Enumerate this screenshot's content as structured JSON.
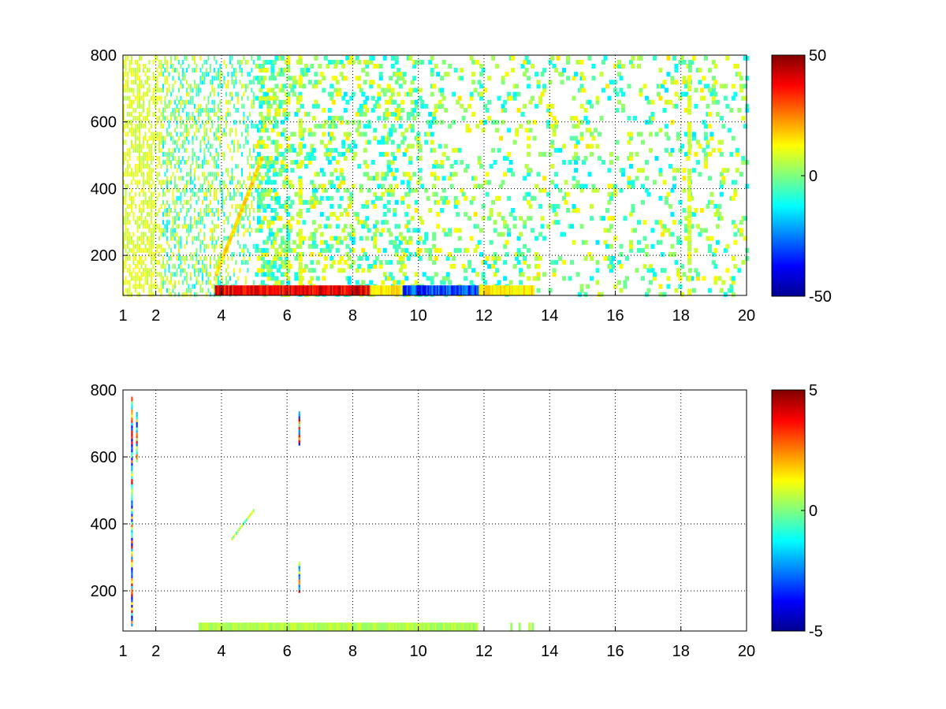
{
  "chart_data": [
    {
      "type": "heatmap",
      "title": "",
      "xlabel": "",
      "ylabel": "",
      "xlim": [
        1,
        20
      ],
      "ylim": [
        80,
        800
      ],
      "xticks": [
        1,
        2,
        4,
        6,
        8,
        10,
        12,
        14,
        16,
        18,
        20
      ],
      "xtick_labels": [
        "1",
        "2",
        "4",
        "6",
        "8",
        "10",
        "12",
        "14",
        "16",
        "18",
        "20"
      ],
      "yticks": [
        200,
        400,
        600,
        800
      ],
      "ytick_labels": [
        "200",
        "400",
        "600",
        "800"
      ],
      "grid": true,
      "colormap": "jet",
      "colorbar": {
        "min": -50,
        "max": 50,
        "ticks": [
          50,
          0,
          -50
        ],
        "tick_labels": [
          "50",
          "0",
          "-50"
        ]
      },
      "features": {
        "low_freq_dense_columns_x": [
          1,
          5
        ],
        "bottom_band": {
          "x_range": [
            3.8,
            13.5
          ],
          "y_range": [
            80,
            110
          ],
          "x_positive_range": [
            3.8,
            8.5
          ],
          "x_negative_range": [
            9.5,
            11.8
          ]
        },
        "diagonal_feature": {
          "x_range": [
            3.8,
            5.2
          ],
          "y_range": [
            150,
            500
          ]
        },
        "strong_columns_x": [
          6.35,
          18.2
        ],
        "sparse_patches_value_range": [
          -15,
          15
        ]
      }
    },
    {
      "type": "heatmap",
      "title": "",
      "xlabel": "",
      "ylabel": "",
      "xlim": [
        1,
        20
      ],
      "ylim": [
        80,
        800
      ],
      "xticks": [
        1,
        2,
        4,
        6,
        8,
        10,
        12,
        14,
        16,
        18,
        20
      ],
      "xtick_labels": [
        "1",
        "2",
        "4",
        "6",
        "8",
        "10",
        "12",
        "14",
        "16",
        "18",
        "20"
      ],
      "yticks": [
        200,
        400,
        600,
        800
      ],
      "ytick_labels": [
        "200",
        "400",
        "600",
        "800"
      ],
      "grid": true,
      "colormap": "jet",
      "colorbar": {
        "min": -5,
        "max": 5,
        "ticks": [
          5,
          0,
          -5
        ],
        "tick_labels": [
          "5",
          "0",
          "-5"
        ]
      },
      "features": {
        "bottom_band": {
          "x_range": [
            3.3,
            13.5
          ],
          "y_range": [
            80,
            105
          ],
          "value": 0.5
        },
        "vertical_streaks": [
          {
            "x": 1.25,
            "y_range": [
              100,
              780
            ]
          },
          {
            "x": 1.4,
            "y_range": [
              590,
              730
            ]
          },
          {
            "x": 6.35,
            "y_range": [
              640,
              730
            ]
          },
          {
            "x": 6.35,
            "y_range": [
              200,
              285
            ]
          }
        ],
        "diagonal_feature": {
          "x_range": [
            4.3,
            5.0
          ],
          "y_range": [
            360,
            450
          ]
        }
      }
    }
  ]
}
